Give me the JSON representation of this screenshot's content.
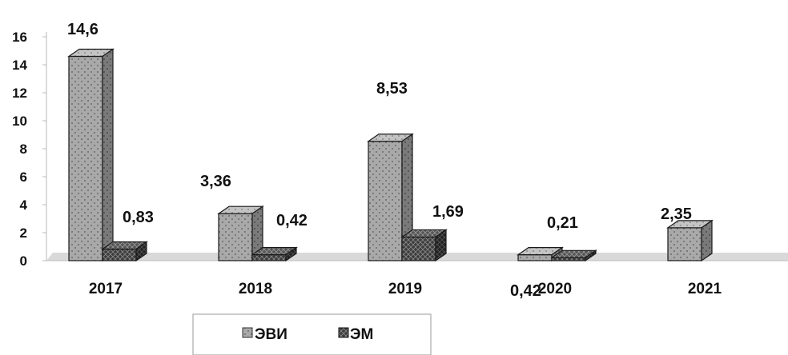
{
  "chart_data": {
    "type": "bar",
    "categories": [
      "2017",
      "2018",
      "2019",
      "2020",
      "2021"
    ],
    "series": [
      {
        "name": "ЭВИ",
        "values": [
          14.6,
          3.36,
          8.53,
          0.42,
          2.35
        ],
        "labels": [
          "14,6",
          "3,36",
          "8,53",
          "0,42",
          "2,35"
        ],
        "color": "#a8a8a8"
      },
      {
        "name": "ЭМ",
        "values": [
          0.83,
          0.42,
          1.69,
          0.21,
          null
        ],
        "labels": [
          "0,83",
          "0,42",
          "1,69",
          "0,21",
          ""
        ],
        "color": "#3a3a3a"
      }
    ],
    "yticks": [
      "0",
      "2",
      "4",
      "6",
      "8",
      "10",
      "12",
      "14",
      "16"
    ],
    "ylim": [
      0,
      16
    ],
    "grid": false,
    "legend_position": "bottom",
    "style": "3d-column"
  }
}
